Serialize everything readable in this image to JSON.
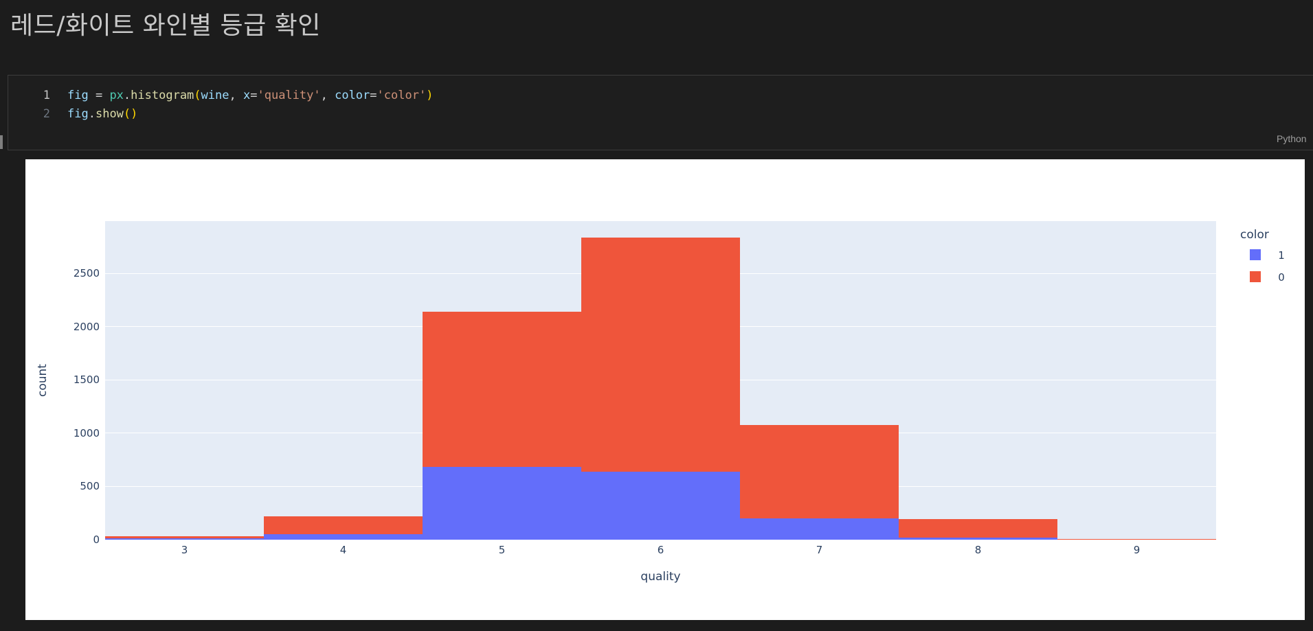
{
  "markdown_cell": {
    "title": "레드/화이트 와인별 등급 확인"
  },
  "code_cell": {
    "kernel_language": "Python",
    "lines": [
      {
        "number": "1",
        "active": true,
        "tokens": [
          {
            "text": "fig",
            "type": "var"
          },
          {
            "text": " = ",
            "type": "punct"
          },
          {
            "text": "px",
            "type": "module"
          },
          {
            "text": ".",
            "type": "punct"
          },
          {
            "text": "histogram",
            "type": "func"
          },
          {
            "text": "(",
            "type": "bracket"
          },
          {
            "text": "wine",
            "type": "var"
          },
          {
            "text": ", ",
            "type": "punct"
          },
          {
            "text": "x",
            "type": "var"
          },
          {
            "text": "=",
            "type": "punct"
          },
          {
            "text": "'quality'",
            "type": "string"
          },
          {
            "text": ", ",
            "type": "punct"
          },
          {
            "text": "color",
            "type": "var"
          },
          {
            "text": "=",
            "type": "punct"
          },
          {
            "text": "'color'",
            "type": "string"
          },
          {
            "text": ")",
            "type": "bracket"
          }
        ]
      },
      {
        "number": "2",
        "active": false,
        "tokens": [
          {
            "text": "fig",
            "type": "var"
          },
          {
            "text": ".",
            "type": "punct"
          },
          {
            "text": "show",
            "type": "func"
          },
          {
            "text": "(",
            "type": "bracket"
          },
          {
            "text": ")",
            "type": "bracket"
          }
        ]
      }
    ]
  },
  "chart_data": {
    "type": "bar",
    "barmode": "stack",
    "title": "",
    "xlabel": "quality",
    "ylabel": "count",
    "categories": [
      3,
      4,
      5,
      6,
      7,
      8,
      9
    ],
    "series": [
      {
        "name": "1",
        "color": "#636EFA",
        "values": [
          10,
          53,
          681,
          638,
          199,
          18,
          0
        ]
      },
      {
        "name": "0",
        "color": "#EF553B",
        "values": [
          20,
          163,
          1457,
          2198,
          880,
          175,
          5
        ]
      }
    ],
    "totals": [
      30,
      216,
      2138,
      2836,
      1079,
      193,
      5
    ],
    "legend_title": "color",
    "legend_position": "right",
    "yticks": [
      0,
      500,
      1000,
      1500,
      2000,
      2500
    ],
    "ylim": [
      0,
      2990
    ],
    "xlim": [
      2.5,
      9.5
    ],
    "grid": true,
    "plot_bgcolor": "#E5ECF6",
    "paper_bgcolor": "#FFFFFF",
    "text_color": "#2A3F5F"
  }
}
